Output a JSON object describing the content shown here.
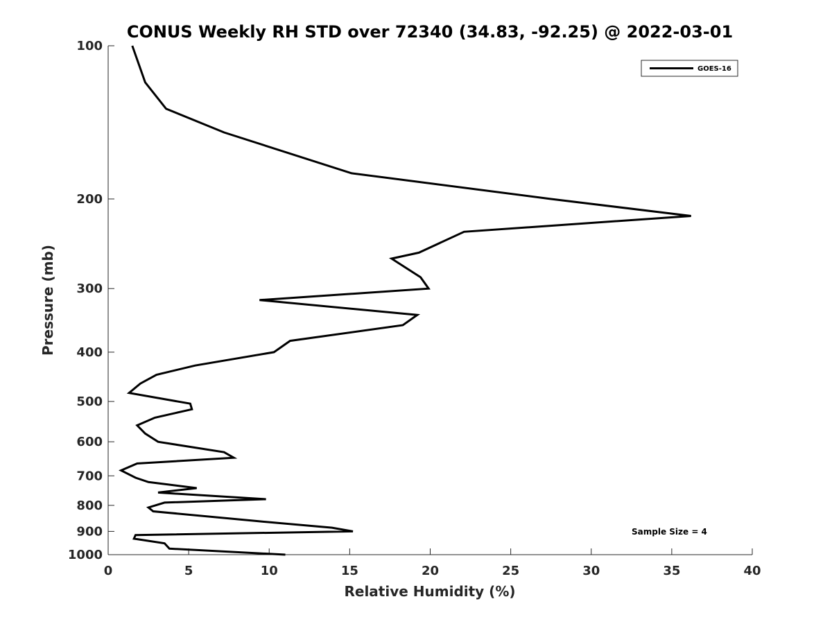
{
  "chart_data": {
    "type": "line",
    "title": "CONUS Weekly RH STD over 72340 (34.83, -92.25) @ 2022-03-01",
    "xlabel": "Relative Humidity (%)",
    "ylabel": "Pressure (mb)",
    "xlim": [
      0,
      40
    ],
    "ylim": [
      100,
      1000
    ],
    "yscale": "log",
    "yreversed": true,
    "xticks": [
      "0",
      "5",
      "10",
      "15",
      "20",
      "25",
      "30",
      "35",
      "40"
    ],
    "yticks": [
      "100",
      "200",
      "300",
      "400",
      "500",
      "600",
      "700",
      "800",
      "900",
      "1000"
    ],
    "grid": false,
    "legend_position": "top-right",
    "series": [
      {
        "name": "GOES-16",
        "color": "#000000",
        "x": [
          1.5,
          2.3,
          3.6,
          7.2,
          15.1,
          27.5,
          36.2,
          22.1,
          19.3,
          17.6,
          19.4,
          19.9,
          9.4,
          19.2,
          18.3,
          11.3,
          10.3,
          5.4,
          3.0,
          2.0,
          1.3,
          5.1,
          5.2,
          2.9,
          1.8,
          2.3,
          3.1,
          7.2,
          7.8,
          1.8,
          0.8,
          1.7,
          2.5,
          5.5,
          3.1,
          9.8,
          3.5,
          2.5,
          2.8,
          9.4,
          13.9,
          15.2,
          1.7,
          1.6,
          3.5,
          3.8,
          11.0
        ],
        "y": [
          100,
          118,
          133,
          148,
          178,
          200,
          216,
          232,
          255,
          262,
          285,
          300,
          316,
          338,
          354,
          380,
          400,
          425,
          443,
          461,
          481,
          505,
          518,
          538,
          557,
          578,
          600,
          629,
          645,
          662,
          683,
          706,
          720,
          740,
          755,
          778,
          790,
          808,
          822,
          860,
          885,
          900,
          915,
          930,
          950,
          973,
          1000
        ]
      }
    ],
    "annotations": [
      "Sample Size = 4"
    ]
  }
}
